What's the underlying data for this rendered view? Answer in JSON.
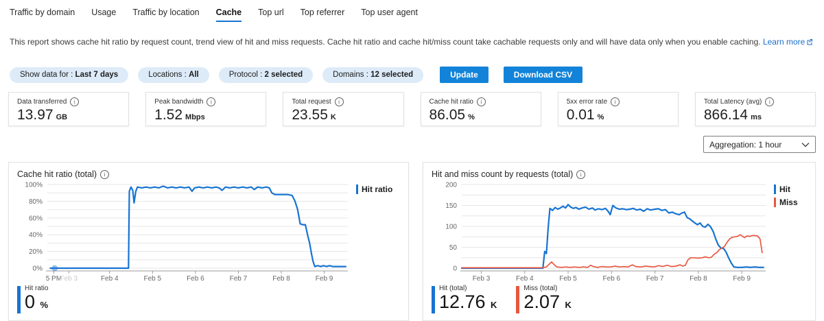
{
  "tabs": [
    {
      "label": "Traffic by domain",
      "active": false
    },
    {
      "label": "Usage",
      "active": false
    },
    {
      "label": "Traffic by location",
      "active": false
    },
    {
      "label": "Cache",
      "active": true
    },
    {
      "label": "Top url",
      "active": false
    },
    {
      "label": "Top referrer",
      "active": false
    },
    {
      "label": "Top user agent",
      "active": false
    }
  ],
  "description": {
    "text": "This report shows cache hit ratio by request count, trend view of hit and miss requests. Cache hit ratio and cache hit/miss count take cachable requests only and will have data only when you enable caching.",
    "link_label": "Learn more"
  },
  "filters": {
    "pills": [
      {
        "label": "Show data for :",
        "value": "Last 7 days"
      },
      {
        "label": "Locations :",
        "value": "All"
      },
      {
        "label": "Protocol :",
        "value": "2 selected"
      },
      {
        "label": "Domains :",
        "value": "12 selected"
      }
    ],
    "update_label": "Update",
    "download_label": "Download CSV"
  },
  "metrics": [
    {
      "label": "Data transferred",
      "value": "13.97",
      "unit": "GB"
    },
    {
      "label": "Peak bandwidth",
      "value": "1.52",
      "unit": "Mbps"
    },
    {
      "label": "Total request",
      "value": "23.55",
      "unit": "K"
    },
    {
      "label": "Cache hit ratio",
      "value": "86.05",
      "unit": "%"
    },
    {
      "label": "5xx error rate",
      "value": "0.01",
      "unit": "%"
    },
    {
      "label": "Total Latency (avg)",
      "value": "866.14",
      "unit": "ms"
    }
  ],
  "aggregation": {
    "label": "Aggregation: 1 hour"
  },
  "colors": {
    "accent": "#1673d2",
    "hit": "#1673d2",
    "miss": "#e8573f",
    "button_bg": "#1283d8",
    "pill_bg": "#ddebf8",
    "link": "#1a6fc8",
    "grid": "#e6e6e6",
    "axis": "#9a9a9a",
    "tick_text": "#666666",
    "faint_tick_text": "#c9c9c9"
  },
  "chart_data": [
    {
      "type": "line",
      "title": "Cache hit ratio (total)",
      "legend_position": "right",
      "grid": true,
      "x_min": 2.55,
      "x_max": 9.55,
      "y_max": 100,
      "y_minor_step": 10,
      "y_suffix": "%",
      "y_ticks": [
        0,
        20,
        40,
        60,
        80,
        100
      ],
      "x_ticks": [
        {
          "x": 2.7,
          "label": "5 PM"
        },
        {
          "x": 3.05,
          "label": "Feb 3",
          "faint": true
        },
        {
          "x": 4,
          "label": "Feb 4"
        },
        {
          "x": 5,
          "label": "Feb 5"
        },
        {
          "x": 6,
          "label": "Feb 6"
        },
        {
          "x": 7,
          "label": "Feb 7"
        },
        {
          "x": 8,
          "label": "Feb 8"
        },
        {
          "x": 9,
          "label": "Feb 9"
        }
      ],
      "marker": {
        "x": 2.72,
        "y": 0
      },
      "legend": [
        {
          "name": "Hit ratio",
          "color": "hit"
        }
      ],
      "series": [
        {
          "name": "Hit ratio",
          "color": "hit",
          "points": [
            [
              2.62,
              0
            ],
            [
              2.7,
              0
            ],
            [
              2.74,
              0
            ],
            [
              3.1,
              0
            ],
            [
              3.6,
              0
            ],
            [
              4.1,
              0
            ],
            [
              4.44,
              0
            ],
            [
              4.46,
              92
            ],
            [
              4.5,
              97
            ],
            [
              4.54,
              93
            ],
            [
              4.57,
              78
            ],
            [
              4.61,
              92
            ],
            [
              4.65,
              97
            ],
            [
              4.75,
              96
            ],
            [
              4.85,
              97
            ],
            [
              4.95,
              96
            ],
            [
              5.05,
              97
            ],
            [
              5.15,
              96
            ],
            [
              5.25,
              98
            ],
            [
              5.35,
              96
            ],
            [
              5.45,
              97
            ],
            [
              5.55,
              96
            ],
            [
              5.65,
              97
            ],
            [
              5.75,
              96
            ],
            [
              5.85,
              97
            ],
            [
              5.92,
              92
            ],
            [
              5.98,
              96
            ],
            [
              6.08,
              97
            ],
            [
              6.18,
              96
            ],
            [
              6.28,
              97
            ],
            [
              6.38,
              96
            ],
            [
              6.48,
              97
            ],
            [
              6.55,
              96
            ],
            [
              6.62,
              93
            ],
            [
              6.7,
              97
            ],
            [
              6.8,
              96
            ],
            [
              6.9,
              97
            ],
            [
              7.0,
              96
            ],
            [
              7.1,
              97
            ],
            [
              7.2,
              96
            ],
            [
              7.3,
              97
            ],
            [
              7.37,
              94
            ],
            [
              7.45,
              97
            ],
            [
              7.55,
              96
            ],
            [
              7.65,
              97
            ],
            [
              7.72,
              96
            ],
            [
              7.78,
              90
            ],
            [
              7.85,
              88
            ],
            [
              7.95,
              88
            ],
            [
              8.05,
              88
            ],
            [
              8.15,
              88
            ],
            [
              8.25,
              87
            ],
            [
              8.32,
              80
            ],
            [
              8.38,
              70
            ],
            [
              8.44,
              53
            ],
            [
              8.5,
              52
            ],
            [
              8.56,
              52
            ],
            [
              8.62,
              38
            ],
            [
              8.66,
              30
            ],
            [
              8.7,
              18
            ],
            [
              8.74,
              8
            ],
            [
              8.78,
              2
            ],
            [
              8.85,
              3
            ],
            [
              8.92,
              2
            ],
            [
              8.98,
              3
            ],
            [
              9.06,
              2
            ],
            [
              9.12,
              3
            ],
            [
              9.2,
              2
            ],
            [
              9.3,
              2
            ],
            [
              9.4,
              2
            ],
            [
              9.5,
              2
            ]
          ]
        }
      ],
      "totals": [
        {
          "label": "Hit ratio",
          "value": "0",
          "unit": "%",
          "color": "hit"
        }
      ]
    },
    {
      "type": "line",
      "title": "Hit and miss count by requests (total)",
      "legend_position": "right",
      "grid": true,
      "x_min": 2.55,
      "x_max": 9.55,
      "y_max": 200,
      "y_minor_step": 25,
      "y_suffix": "",
      "y_ticks": [
        0,
        50,
        100,
        150,
        200
      ],
      "x_ticks": [
        {
          "x": 3,
          "label": "Feb 3"
        },
        {
          "x": 4,
          "label": "Feb 4"
        },
        {
          "x": 5,
          "label": "Feb 5"
        },
        {
          "x": 6,
          "label": "Feb 6"
        },
        {
          "x": 7,
          "label": "Feb 7"
        },
        {
          "x": 8,
          "label": "Feb 8"
        },
        {
          "x": 9,
          "label": "Feb 9"
        }
      ],
      "legend": [
        {
          "name": "Hit",
          "color": "hit"
        },
        {
          "name": "Miss",
          "color": "miss"
        }
      ],
      "series": [
        {
          "name": "Hit",
          "color": "hit",
          "points": [
            [
              2.55,
              0
            ],
            [
              3.0,
              0
            ],
            [
              3.5,
              0
            ],
            [
              4.0,
              0
            ],
            [
              4.42,
              0
            ],
            [
              4.46,
              40
            ],
            [
              4.5,
              35
            ],
            [
              4.54,
              95
            ],
            [
              4.58,
              143
            ],
            [
              4.64,
              138
            ],
            [
              4.7,
              145
            ],
            [
              4.76,
              141
            ],
            [
              4.82,
              144
            ],
            [
              4.88,
              148
            ],
            [
              4.94,
              144
            ],
            [
              5.0,
              152
            ],
            [
              5.06,
              146
            ],
            [
              5.12,
              143
            ],
            [
              5.18,
              145
            ],
            [
              5.25,
              141
            ],
            [
              5.32,
              144
            ],
            [
              5.4,
              146
            ],
            [
              5.48,
              141
            ],
            [
              5.56,
              144
            ],
            [
              5.62,
              139
            ],
            [
              5.7,
              142
            ],
            [
              5.78,
              140
            ],
            [
              5.86,
              143
            ],
            [
              5.92,
              136
            ],
            [
              5.97,
              128
            ],
            [
              6.03,
              150
            ],
            [
              6.1,
              144
            ],
            [
              6.18,
              141
            ],
            [
              6.26,
              142
            ],
            [
              6.34,
              140
            ],
            [
              6.42,
              141
            ],
            [
              6.5,
              143
            ],
            [
              6.58,
              139
            ],
            [
              6.66,
              141
            ],
            [
              6.74,
              136
            ],
            [
              6.82,
              142
            ],
            [
              6.9,
              139
            ],
            [
              7.0,
              141
            ],
            [
              7.08,
              142
            ],
            [
              7.16,
              138
            ],
            [
              7.24,
              140
            ],
            [
              7.32,
              132
            ],
            [
              7.4,
              134
            ],
            [
              7.48,
              130
            ],
            [
              7.56,
              128
            ],
            [
              7.62,
              132
            ],
            [
              7.68,
              134
            ],
            [
              7.74,
              121
            ],
            [
              7.8,
              118
            ],
            [
              7.86,
              113
            ],
            [
              7.92,
              108
            ],
            [
              7.98,
              104
            ],
            [
              8.04,
              108
            ],
            [
              8.1,
              100
            ],
            [
              8.16,
              98
            ],
            [
              8.22,
              105
            ],
            [
              8.28,
              99
            ],
            [
              8.34,
              88
            ],
            [
              8.4,
              70
            ],
            [
              8.46,
              55
            ],
            [
              8.52,
              48
            ],
            [
              8.58,
              47
            ],
            [
              8.64,
              38
            ],
            [
              8.7,
              24
            ],
            [
              8.76,
              12
            ],
            [
              8.82,
              3
            ],
            [
              8.9,
              2
            ],
            [
              9.0,
              2
            ],
            [
              9.1,
              3
            ],
            [
              9.2,
              2
            ],
            [
              9.3,
              3
            ],
            [
              9.4,
              2
            ],
            [
              9.5,
              2
            ]
          ]
        },
        {
          "name": "Miss",
          "color": "miss",
          "points": [
            [
              2.55,
              1
            ],
            [
              3.0,
              1
            ],
            [
              3.5,
              1
            ],
            [
              4.0,
              1
            ],
            [
              4.4,
              1
            ],
            [
              4.5,
              3
            ],
            [
              4.56,
              9
            ],
            [
              4.62,
              15
            ],
            [
              4.68,
              8
            ],
            [
              4.74,
              3
            ],
            [
              4.85,
              2
            ],
            [
              4.95,
              3
            ],
            [
              5.05,
              2
            ],
            [
              5.15,
              3
            ],
            [
              5.25,
              2
            ],
            [
              5.35,
              3
            ],
            [
              5.45,
              2
            ],
            [
              5.52,
              7
            ],
            [
              5.58,
              4
            ],
            [
              5.68,
              2
            ],
            [
              5.78,
              4
            ],
            [
              5.88,
              3
            ],
            [
              5.98,
              3
            ],
            [
              6.08,
              5
            ],
            [
              6.18,
              3
            ],
            [
              6.28,
              4
            ],
            [
              6.38,
              3
            ],
            [
              6.48,
              8
            ],
            [
              6.56,
              4
            ],
            [
              6.68,
              3
            ],
            [
              6.78,
              5
            ],
            [
              6.88,
              4
            ],
            [
              6.98,
              3
            ],
            [
              7.08,
              6
            ],
            [
              7.18,
              4
            ],
            [
              7.28,
              7
            ],
            [
              7.38,
              4
            ],
            [
              7.48,
              5
            ],
            [
              7.58,
              8
            ],
            [
              7.64,
              5
            ],
            [
              7.7,
              7
            ],
            [
              7.76,
              20
            ],
            [
              7.82,
              25
            ],
            [
              7.9,
              25
            ],
            [
              8.0,
              24
            ],
            [
              8.08,
              25
            ],
            [
              8.16,
              27
            ],
            [
              8.24,
              25
            ],
            [
              8.3,
              26
            ],
            [
              8.36,
              33
            ],
            [
              8.42,
              37
            ],
            [
              8.48,
              44
            ],
            [
              8.54,
              48
            ],
            [
              8.6,
              52
            ],
            [
              8.66,
              62
            ],
            [
              8.72,
              70
            ],
            [
              8.78,
              74
            ],
            [
              8.84,
              75
            ],
            [
              8.9,
              76
            ],
            [
              8.96,
              80
            ],
            [
              9.02,
              76
            ],
            [
              9.06,
              73
            ],
            [
              9.12,
              77
            ],
            [
              9.18,
              76
            ],
            [
              9.24,
              78
            ],
            [
              9.3,
              78
            ],
            [
              9.36,
              77
            ],
            [
              9.42,
              70
            ],
            [
              9.47,
              37
            ]
          ]
        }
      ],
      "totals": [
        {
          "label": "Hit (total)",
          "value": "12.76",
          "unit": "K",
          "color": "hit"
        },
        {
          "label": "Miss (total)",
          "value": "2.07",
          "unit": "K",
          "color": "miss"
        }
      ]
    }
  ]
}
